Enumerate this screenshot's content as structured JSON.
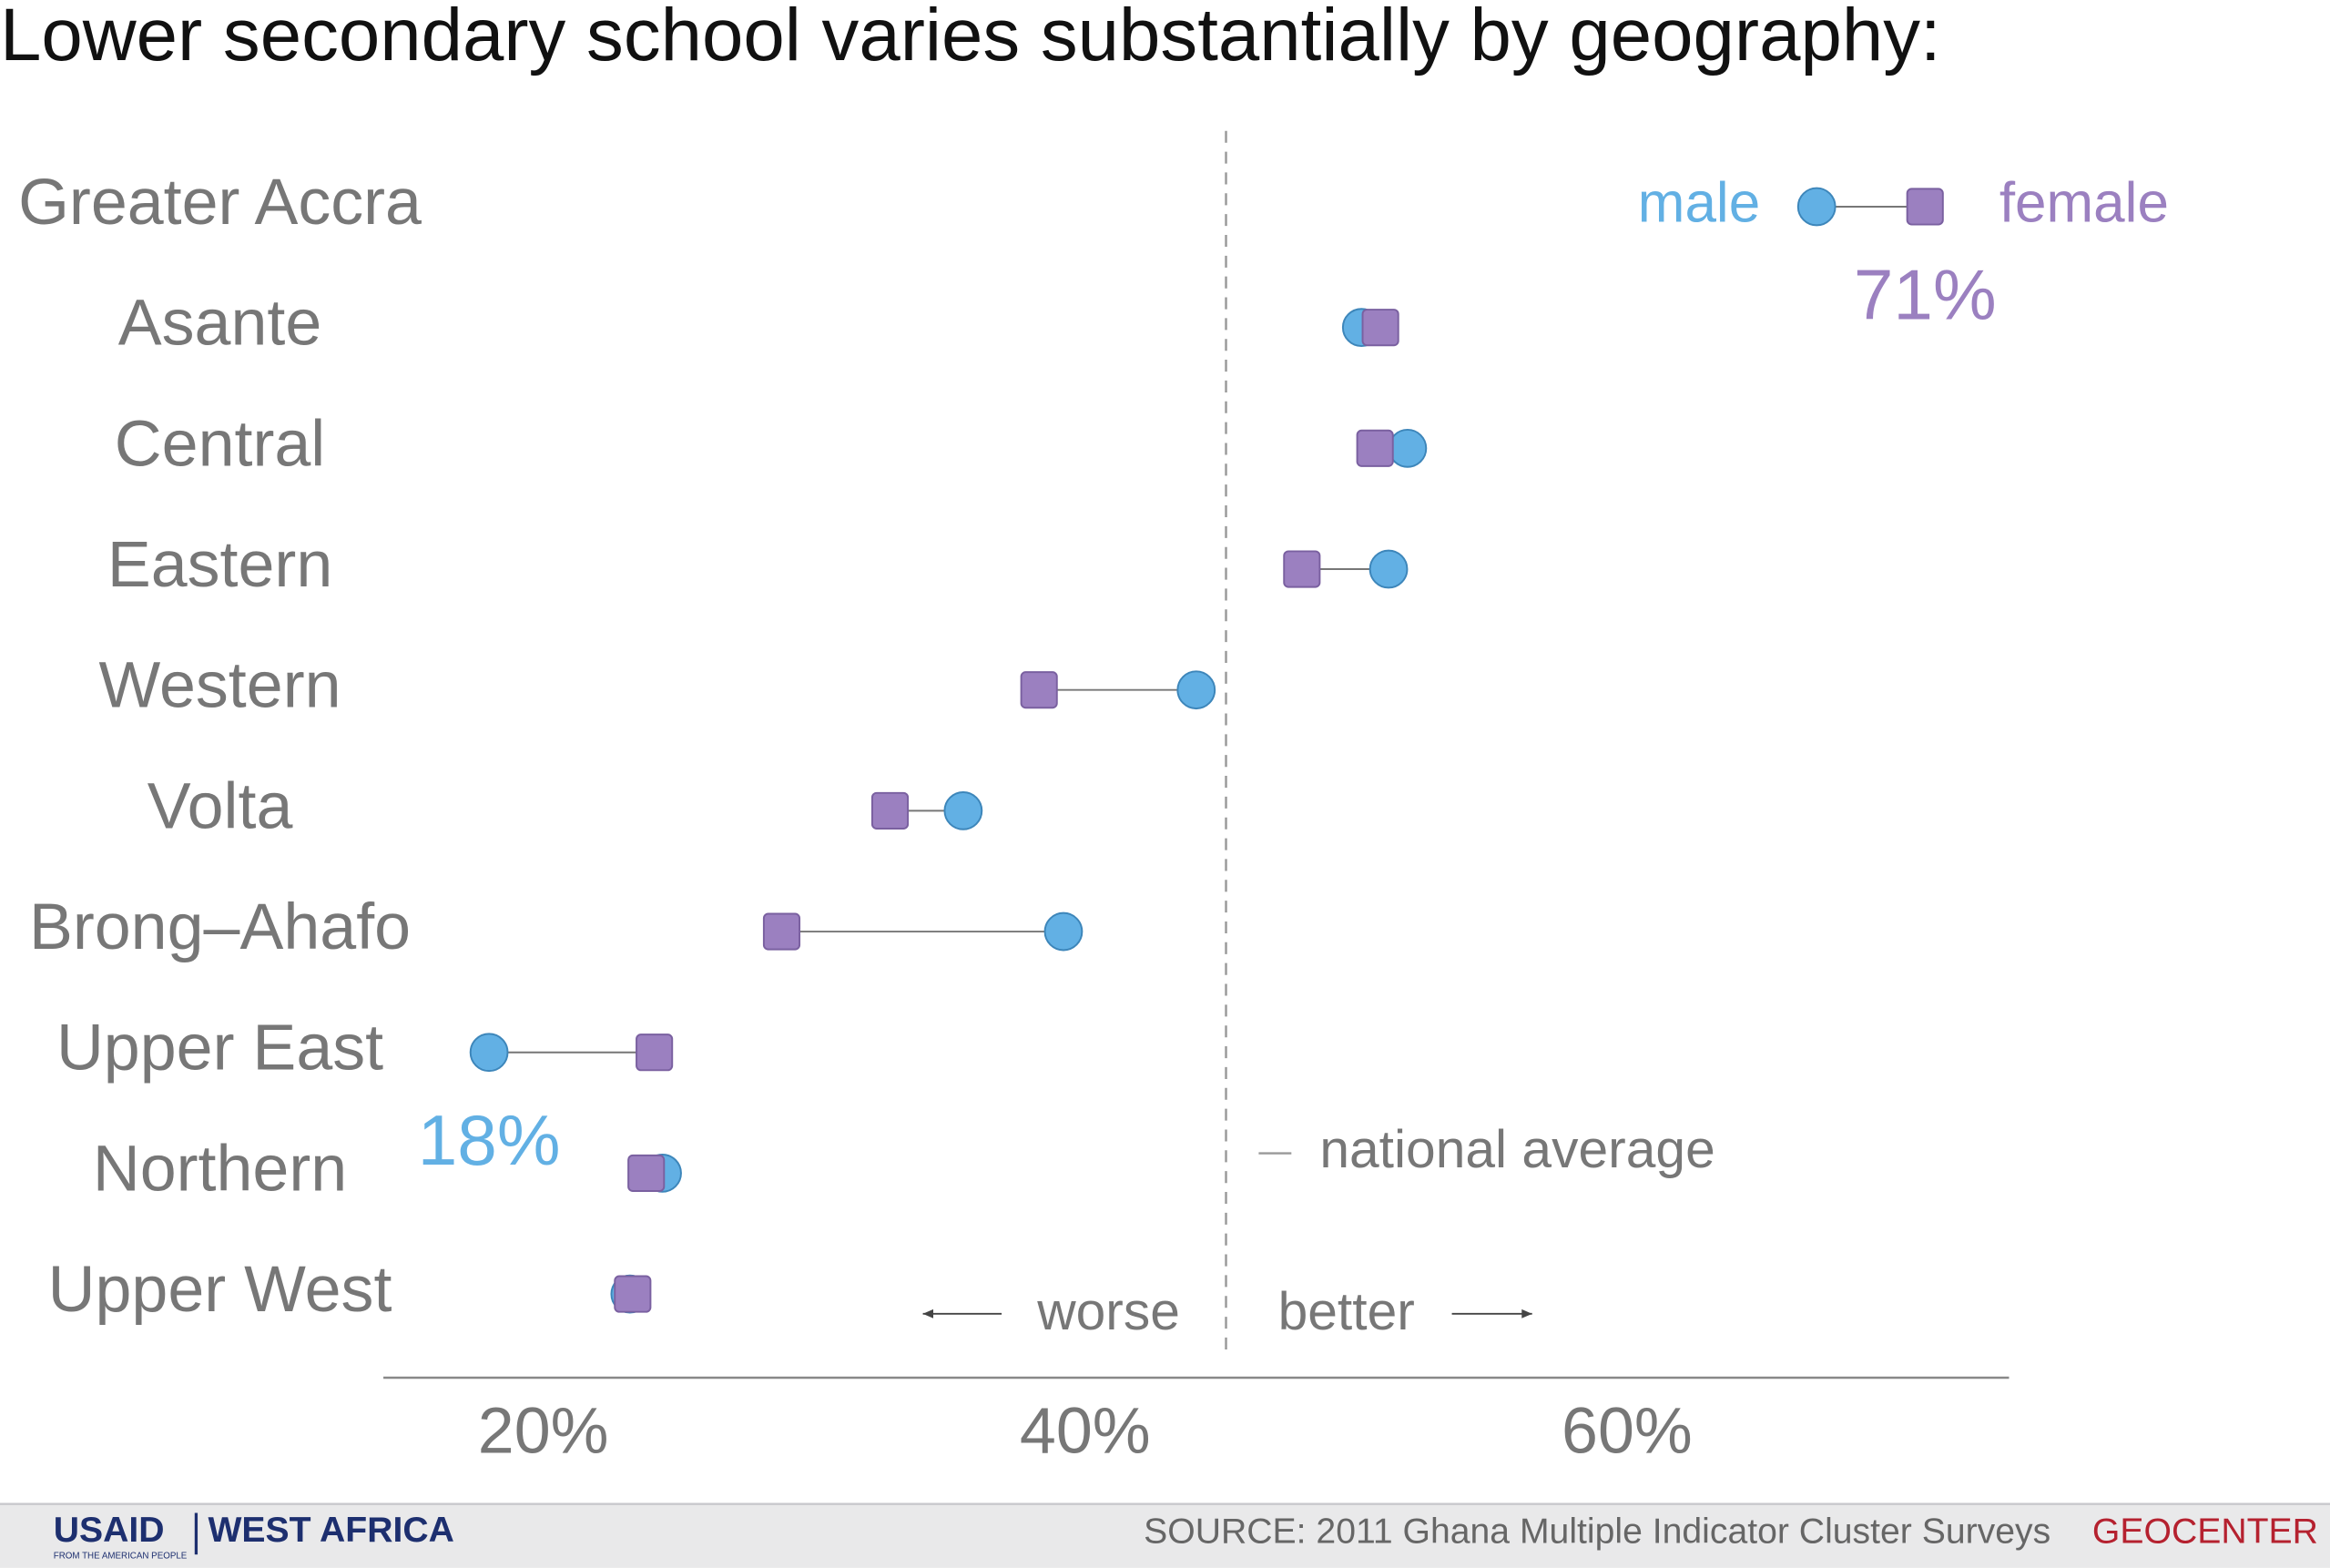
{
  "chart_data": {
    "type": "dumbbell",
    "title": "Lower secondary school varies substantially by geography:",
    "categories": [
      "Greater Accra",
      "Asante",
      "Central",
      "Eastern",
      "Western",
      "Volta",
      "Brong–Ahafo",
      "Upper East",
      "Northern",
      "Upper West"
    ],
    "series": [
      {
        "name": "male",
        "color": "#62b0e4",
        "values": [
          67,
          50.2,
          51.9,
          51.2,
          44.1,
          35.5,
          39.2,
          18,
          24.4,
          23.2
        ],
        "value_labels": [
          null,
          null,
          null,
          null,
          null,
          null,
          null,
          "18%",
          null,
          null
        ]
      },
      {
        "name": "female",
        "color": "#9b80c0",
        "values": [
          71,
          50.9,
          50.7,
          48.0,
          38.3,
          32.8,
          28.8,
          24.1,
          23.8,
          23.3
        ],
        "value_labels": [
          "71%",
          null,
          null,
          null,
          null,
          null,
          null,
          null,
          null,
          null
        ]
      }
    ],
    "xlim": [
      14.1,
      74.1
    ],
    "xticks": [
      {
        "value": 20,
        "label": "20%"
      },
      {
        "value": 40,
        "label": "40%"
      },
      {
        "value": 60,
        "label": "60%"
      }
    ],
    "national_average": {
      "value": 45.2,
      "label": "national average"
    },
    "direction_labels": {
      "worse": "worse",
      "better": "better"
    }
  },
  "footer": {
    "source": "SOURCE: 2011 Ghana Multiple Indicator Cluster Surveys",
    "usaid": "USAID",
    "tagline": "FROM THE AMERICAN PEOPLE",
    "region": "WEST AFRICA",
    "geocenter": "GEOCENTER"
  }
}
